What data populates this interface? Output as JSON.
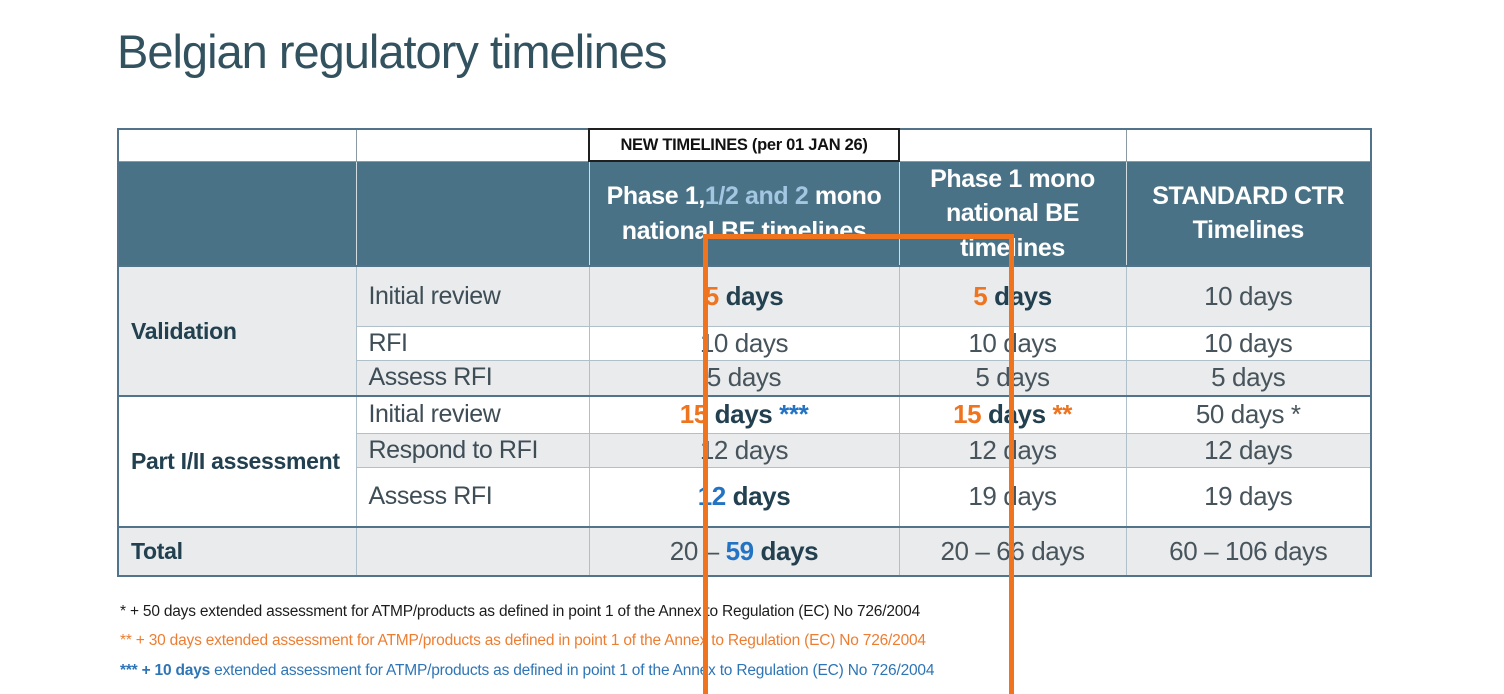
{
  "title": "Belgian regulatory timelines",
  "colors": {
    "title": "#33525F",
    "header_bg": "#4A7286",
    "header_text": "#FFFFFF",
    "header_lightblue": "#A3C6E2",
    "row_shaded": "#E9EBEC",
    "accent_orange": "#EE7420",
    "accent_blue": "#2273C3",
    "text_dark": "#22404F",
    "text_body": "#47545C",
    "border_dark": "#52748A",
    "border_light": "#AFC0CA",
    "box_orange": "#F0731E",
    "footnote_dark": "#1C1C1C",
    "footnote_orange": "#ED7D31",
    "footnote_blue": "#2E75B6"
  },
  "table": {
    "new_timelines_label": "NEW TIMELINES (per 01 JAN 26)",
    "col_headers": [
      {
        "parts": [
          {
            "t": "Phase 1,"
          },
          {
            "t": "1/2 and 2",
            "c": "lb"
          },
          {
            "t": " mono national BE timelines"
          }
        ]
      },
      {
        "parts": [
          {
            "t": "Phase 1 mono national BE timelines"
          }
        ]
      },
      {
        "parts": [
          {
            "t": "STANDARD CTR Timelines"
          }
        ]
      }
    ],
    "groups": [
      {
        "label": "Validation",
        "rows": [
          {
            "sub": "Initial review",
            "cells": [
              [
                {
                  "t": "5",
                  "c": "b or"
                },
                {
                  "t": " days",
                  "c": "b dk"
                }
              ],
              [
                {
                  "t": "5",
                  "c": "b or"
                },
                {
                  "t": " days",
                  "c": "b dk"
                }
              ],
              [
                {
                  "t": "10 days"
                }
              ]
            ]
          },
          {
            "sub": "RFI",
            "cells": [
              [
                {
                  "t": "10 days"
                }
              ],
              [
                {
                  "t": "10 days"
                }
              ],
              [
                {
                  "t": "10 days"
                }
              ]
            ]
          },
          {
            "sub": "Assess RFI",
            "cells": [
              [
                {
                  "t": "5 days"
                }
              ],
              [
                {
                  "t": "5 days"
                }
              ],
              [
                {
                  "t": "5 days"
                }
              ]
            ]
          }
        ]
      },
      {
        "label": "Part I/II assessment",
        "rows": [
          {
            "sub": "Initial review",
            "cells": [
              [
                {
                  "t": "15",
                  "c": "b or"
                },
                {
                  "t": " days ",
                  "c": "b dk"
                },
                {
                  "t": "***",
                  "c": "b bl"
                }
              ],
              [
                {
                  "t": "15",
                  "c": "b or"
                },
                {
                  "t": " days ",
                  "c": "b dk"
                },
                {
                  "t": "**",
                  "c": "b or"
                }
              ],
              [
                {
                  "t": "50 days *"
                }
              ]
            ]
          },
          {
            "sub": "Respond to RFI",
            "cells": [
              [
                {
                  "t": "12 days"
                }
              ],
              [
                {
                  "t": "12 days"
                }
              ],
              [
                {
                  "t": "12 days"
                }
              ]
            ]
          },
          {
            "sub": "Assess RFI",
            "cells": [
              [
                {
                  "t": "12",
                  "c": "b bl"
                },
                {
                  "t": " days",
                  "c": "b dk"
                }
              ],
              [
                {
                  "t": "19 days"
                }
              ],
              [
                {
                  "t": "19 days"
                }
              ]
            ]
          }
        ]
      }
    ],
    "total": {
      "label": "Total",
      "cells": [
        [
          {
            "t": "20 – "
          },
          {
            "t": "59",
            "c": "b bl"
          },
          {
            "t": " days",
            "c": "b dk"
          }
        ],
        [
          {
            "t": "20 – 66 days"
          }
        ],
        [
          {
            "t": "60 – 106 days"
          }
        ]
      ]
    }
  },
  "footnotes": [
    {
      "color": "dark",
      "parts": [
        {
          "t": "* + 50 days extended assessment for ATMP/products as defined in point 1 of the Annex to Regulation (EC) No 726/2004"
        }
      ]
    },
    {
      "color": "orange",
      "parts": [
        {
          "t": "** + 30 days extended assessment for ATMP/products as defined in point 1 of the Annex to Regulation (EC) No 726/2004"
        }
      ]
    },
    {
      "color": "blue",
      "parts": [
        {
          "t": "*** + 10 days",
          "c": "b"
        },
        {
          "t": " extended assessment for ATMP/products as defined in point 1 of the Annex to Regulation (EC) No 726/2004"
        }
      ]
    }
  ]
}
